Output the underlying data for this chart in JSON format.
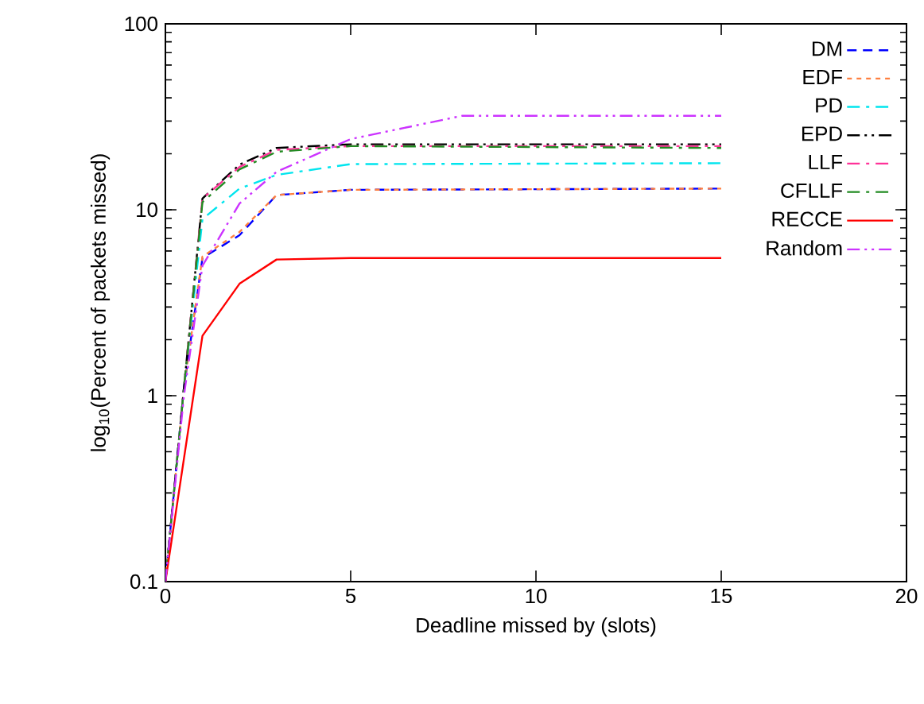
{
  "chart_data": {
    "type": "line",
    "xlabel": "Deadline missed by (slots)",
    "ylabel": "log$_{10}$(Percent of packets missed)",
    "log": "y",
    "xlim": [
      0,
      20
    ],
    "ylim": [
      0.1,
      100
    ],
    "xticks": [
      0,
      5,
      10,
      15,
      20
    ],
    "yticks": [
      0.1,
      1,
      10,
      100
    ],
    "legend": "top right",
    "grid": false,
    "series": [
      {
        "name": "DM",
        "color": "#0000ff",
        "line_style": "dashed",
        "x": [
          0,
          0.5,
          1,
          2,
          3,
          5,
          15
        ],
        "values": [
          0.1,
          1.1,
          5.5,
          7.3,
          12,
          12.8,
          13
        ]
      },
      {
        "name": "EDF",
        "color": "#ff8040",
        "line_style": "dotted",
        "x": [
          0,
          0.5,
          1,
          2,
          3,
          5,
          15
        ],
        "values": [
          0.1,
          1.1,
          5.6,
          7.6,
          12,
          12.8,
          13
        ]
      },
      {
        "name": "PD",
        "color": "#00e5ee",
        "line_style": "dashdotted",
        "x": [
          0,
          0.5,
          1,
          2,
          3,
          5,
          15
        ],
        "values": [
          0.1,
          1.1,
          8.9,
          13,
          15.4,
          17.6,
          17.8
        ]
      },
      {
        "name": "EPD",
        "color": "#000000",
        "line_style": "dashdotdotted",
        "x": [
          0,
          0.5,
          1,
          2,
          3,
          5,
          15
        ],
        "values": [
          0.1,
          1.1,
          11.5,
          17.5,
          21.5,
          22.5,
          22.5
        ]
      },
      {
        "name": "LLF",
        "color": "#ff3399",
        "line_style": "dashdotted",
        "x": [
          0,
          0.5,
          1,
          2,
          3,
          5,
          15
        ],
        "values": [
          0.1,
          1.1,
          11.5,
          17,
          21,
          22,
          22
        ]
      },
      {
        "name": "CFLLF",
        "color": "#228b22",
        "line_style": "dashdotted",
        "x": [
          0,
          0.5,
          1,
          2,
          3,
          5,
          15
        ],
        "values": [
          0.1,
          1.1,
          11,
          16.5,
          20.5,
          22,
          21.5
        ]
      },
      {
        "name": "RECCE",
        "color": "#ff0000",
        "line_style": "solid",
        "x": [
          0,
          1,
          2,
          3,
          5,
          15
        ],
        "values": [
          0.1,
          2.1,
          4,
          5.4,
          5.5,
          5.5
        ]
      },
      {
        "name": "Random",
        "color": "#cc33ff",
        "line_style": "dashdotdotted",
        "x": [
          0,
          0.5,
          1,
          2,
          3,
          5,
          8,
          15
        ],
        "values": [
          0.1,
          1,
          5,
          10.8,
          16,
          24,
          32,
          32
        ]
      }
    ]
  }
}
